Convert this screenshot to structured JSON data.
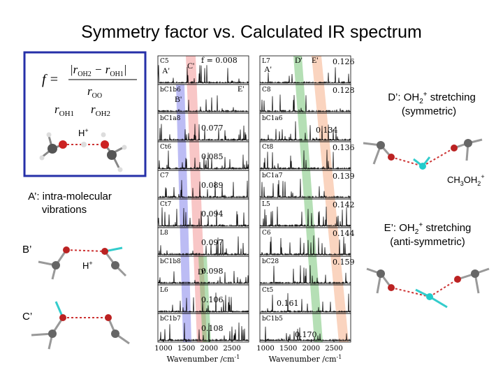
{
  "title": "Symmetry factor vs. Calculated IR spectrum",
  "formula": {
    "lhs": "f =",
    "numerator": [
      "|r",
      "OH2",
      " − r",
      "OH1",
      "|"
    ],
    "denominator": [
      "r",
      "OO"
    ]
  },
  "diagram_labels": {
    "r_oh1": [
      "r",
      "OH1"
    ],
    "r_oh2": [
      "r",
      "OH2"
    ],
    "h_plus": [
      "H",
      "+"
    ]
  },
  "notes": {
    "a_prime": [
      "A’: intra-molecular",
      "vibrations"
    ],
    "b_prime": "B’",
    "h_plus": [
      "H",
      "+"
    ],
    "c_prime": "C’",
    "d_prime": [
      "D’: OH",
      "2",
      "+",
      " stretching",
      "(symmetric)"
    ],
    "cation": [
      "CH",
      "3",
      "OH",
      "2",
      "+"
    ],
    "e_prime": [
      "E’: OH",
      "2",
      "+",
      " stretching",
      "(anti-symmetric)"
    ]
  },
  "spectra": {
    "left": [
      {
        "name": "C5",
        "value": "f = 0.008",
        "marks": [
          "A'",
          "C'"
        ]
      },
      {
        "name": "bC1b6",
        "marks": [
          "E'",
          "B'"
        ]
      },
      {
        "name": "bC1a8",
        "value": "0.077"
      },
      {
        "name": "Ct6",
        "value": "0.085"
      },
      {
        "name": "C7",
        "value": "0.089"
      },
      {
        "name": "Ct7",
        "value": "0.094"
      },
      {
        "name": "L8",
        "value": "0.097"
      },
      {
        "name": "bC1b8",
        "value": "0.098",
        "marks": [
          "D'"
        ]
      },
      {
        "name": "L6",
        "value": "0.106"
      },
      {
        "name": "bC1b7",
        "value": "0.108"
      }
    ],
    "right": [
      {
        "name": "L7",
        "value": "0.126",
        "marks": [
          "D'",
          "E'",
          "A'"
        ]
      },
      {
        "name": "C8",
        "value": "0.128"
      },
      {
        "name": "bC1a6",
        "value": "0.134"
      },
      {
        "name": "Ct8",
        "value": "0.136"
      },
      {
        "name": "bC1a7",
        "value": "0.139"
      },
      {
        "name": "L5",
        "value": "0.142"
      },
      {
        "name": "C6",
        "value": "0.144"
      },
      {
        "name": "bC28",
        "value": "0.159"
      },
      {
        "name": "Ct5",
        "value": "0.161"
      },
      {
        "name": "bC1b5",
        "value": "0.170"
      }
    ],
    "axis_ticks": [
      "1000",
      "1500",
      "2000",
      "2500"
    ],
    "axis_label": [
      "Wavenumber /cm",
      "-1"
    ]
  }
}
